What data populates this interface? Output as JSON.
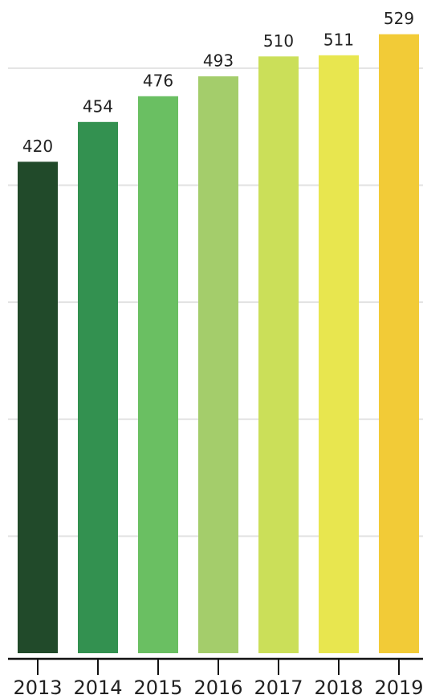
{
  "chart_data": {
    "type": "bar",
    "categories": [
      "2013",
      "2014",
      "2015",
      "2016",
      "2017",
      "2018",
      "2019"
    ],
    "values": [
      420,
      454,
      476,
      493,
      510,
      511,
      529
    ],
    "colors": [
      "#214a2a",
      "#339150",
      "#6abf62",
      "#a4cd6b",
      "#cbdf59",
      "#e8e64f",
      "#f2cb37"
    ],
    "ylim": [
      0,
      550
    ],
    "yticks": [
      0,
      100,
      200,
      300,
      400,
      500
    ],
    "grid": true
  }
}
